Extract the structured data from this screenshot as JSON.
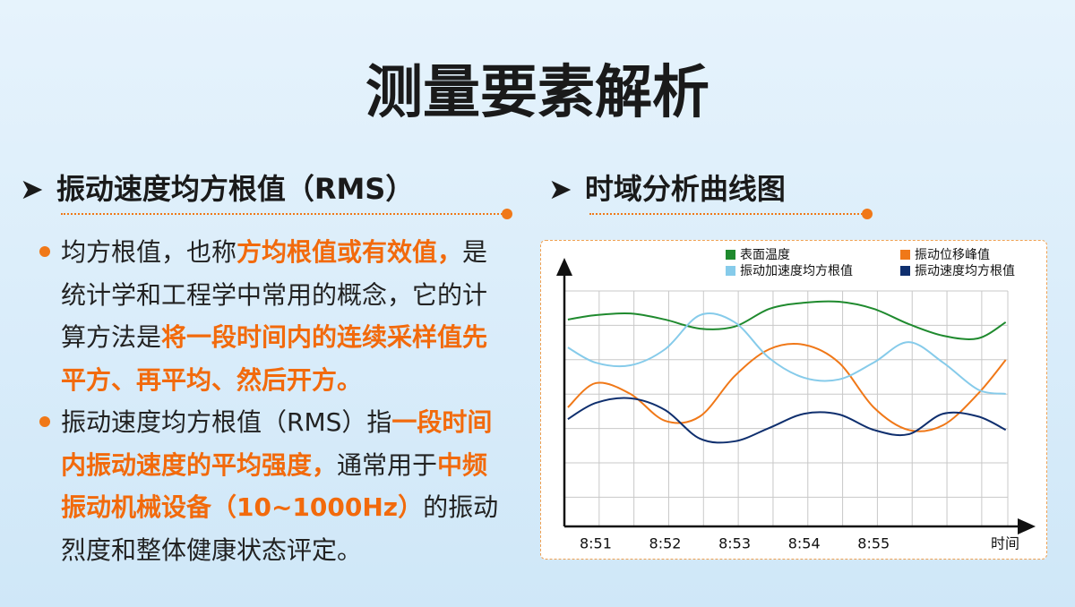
{
  "title": "测量要素解析",
  "left": {
    "heading": "振动速度均方根值（RMS）",
    "bullets": [
      [
        {
          "text": "均方根值，也称"
        },
        {
          "text": "方均根值或有效值，",
          "highlight": true
        },
        {
          "text": "是统计学和工程学中常用的概念，它的计算方法是"
        },
        {
          "text": "将一段时间内的连续采样值先平方、再平均、然后开方。",
          "highlight": true
        }
      ],
      [
        {
          "text": "振动速度均方根值（RMS）指"
        },
        {
          "text": "一段时间内振动速度的平均强度，",
          "highlight": true
        },
        {
          "text": "通常用于"
        },
        {
          "text": "中频振动机械设备（10~1000Hz）",
          "highlight": true
        },
        {
          "text": "的振动烈度和整体健康状态评定。"
        }
      ]
    ]
  },
  "right": {
    "heading": "时域分析曲线图"
  },
  "chart_data": {
    "type": "line",
    "xlabel": "时间",
    "grid": true,
    "x": [
      50.6,
      51,
      51.5,
      52,
      52.5,
      53,
      53.5,
      54,
      54.5,
      55,
      55.5,
      56,
      56.5,
      56.9
    ],
    "xlim": [
      50.55,
      56.93
    ],
    "xticks": [
      {
        "value": 51,
        "label": "8:51"
      },
      {
        "value": 52,
        "label": "8:52"
      },
      {
        "value": 53,
        "label": "8:53"
      },
      {
        "value": 54,
        "label": "8:54"
      },
      {
        "value": 55,
        "label": "8:55"
      }
    ],
    "ylim": [
      0,
      7
    ],
    "series": [
      {
        "name": "表面温度",
        "color": "#1f8a2e",
        "values": [
          6.15,
          6.28,
          6.33,
          6.15,
          5.88,
          5.94,
          6.47,
          6.65,
          6.68,
          6.47,
          6.02,
          5.67,
          5.59,
          6.07
        ]
      },
      {
        "name": "振动位移峰值",
        "color": "#f07818",
        "values": [
          3.54,
          4.26,
          3.94,
          3.14,
          3.27,
          4.47,
          5.27,
          5.4,
          4.87,
          3.54,
          2.87,
          3.01,
          3.94,
          4.95
        ]
      },
      {
        "name": "振动加速度均方根值",
        "color": "#86cbea",
        "values": [
          5.32,
          4.87,
          4.79,
          5.27,
          6.28,
          6.07,
          5.0,
          4.42,
          4.37,
          4.87,
          5.48,
          4.87,
          4.07,
          3.94
        ]
      },
      {
        "name": "振动速度均方根值",
        "color": "#0f2f6e",
        "values": [
          3.19,
          3.67,
          3.81,
          3.46,
          2.61,
          2.53,
          2.93,
          3.35,
          3.33,
          2.87,
          2.74,
          3.35,
          3.27,
          2.87
        ]
      }
    ]
  }
}
